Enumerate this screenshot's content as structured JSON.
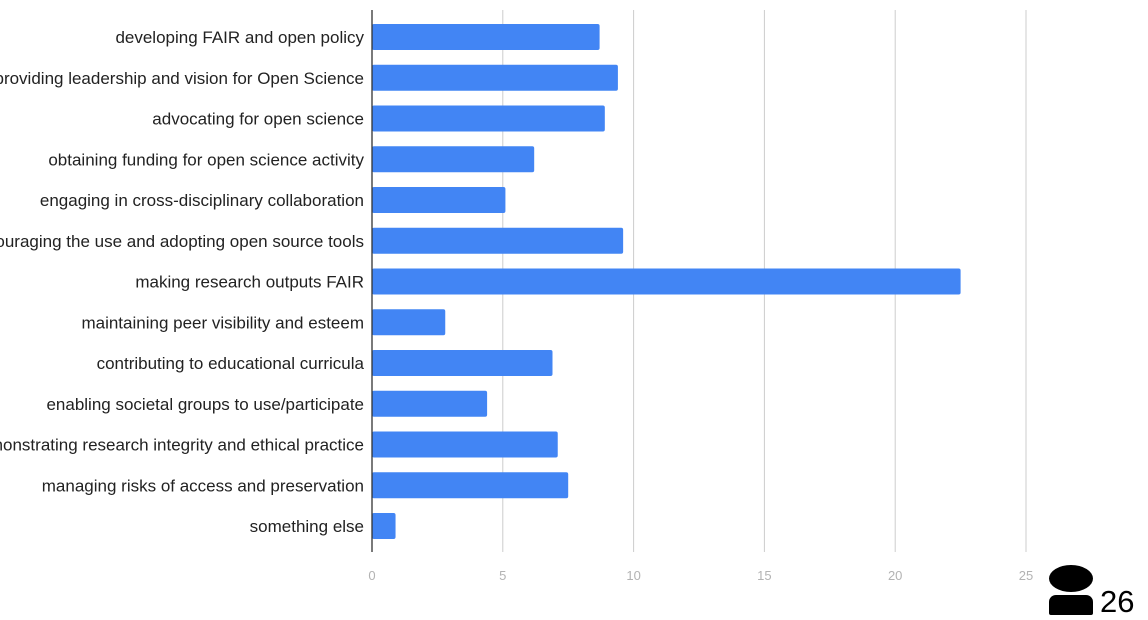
{
  "chart_data": {
    "type": "bar",
    "orientation": "horizontal",
    "categories": [
      "developing FAIR and open policy",
      "providing leadership and vision for Open Science",
      "advocating for open science",
      "obtaining funding for open science activity",
      "engaging in cross-disciplinary collaboration",
      "encouraging the use and adopting open source tools",
      "making research outputs FAIR",
      "maintaining peer visibility and esteem",
      "contributing to educational curricula",
      "enabling societal groups to use/participate",
      "demonstrating research integrity and ethical practice",
      "managing risks of access and preservation",
      "something else"
    ],
    "values": [
      8.7,
      9.4,
      8.9,
      6.2,
      5.1,
      9.6,
      22.5,
      2.8,
      6.9,
      4.4,
      7.1,
      7.5,
      0.9
    ],
    "xlim": [
      0,
      25
    ],
    "xticks": [
      "0",
      "5",
      "10",
      "15",
      "20",
      "25"
    ],
    "grid": true,
    "legend": "none",
    "bar_color": "#4285f4",
    "grid_color": "#cccccc",
    "axis_color": "#333333",
    "tick_color": "#b3b3b3"
  },
  "respondents": {
    "icon": "person-icon",
    "count": "26"
  }
}
